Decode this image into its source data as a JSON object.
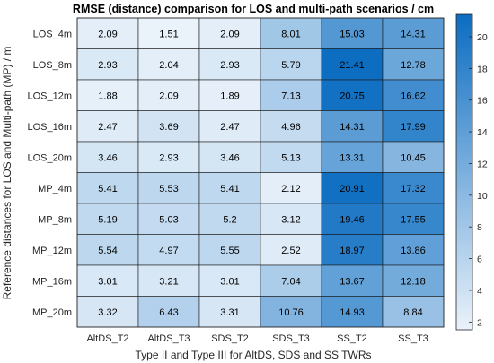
{
  "chart_data": {
    "type": "heatmap",
    "title": "RMSE (distance) comparison for LOS and multi-path scenarios / cm",
    "xlabel": "Type II and Type III for AltDS, SDS and SS TWRs",
    "ylabel": "Reference distances for LOS and Multi-path (MP) / m",
    "x_categories": [
      "AltDS_T2",
      "AltDS_T3",
      "SDS_T2",
      "SDS_T3",
      "SS_T2",
      "SS_T3"
    ],
    "y_categories": [
      "LOS_4m",
      "LOS_8m",
      "LOS_12m",
      "LOS_16m",
      "LOS_20m",
      "MP_4m",
      "MP_8m",
      "MP_12m",
      "MP_16m",
      "MP_20m"
    ],
    "values": [
      [
        2.09,
        1.51,
        2.09,
        8.01,
        15.03,
        14.31
      ],
      [
        2.93,
        2.04,
        2.93,
        5.79,
        21.41,
        12.78
      ],
      [
        1.88,
        2.09,
        1.89,
        7.13,
        20.75,
        16.62
      ],
      [
        2.47,
        3.69,
        2.47,
        4.96,
        14.31,
        17.99
      ],
      [
        3.46,
        2.93,
        3.46,
        5.13,
        13.31,
        10.45
      ],
      [
        5.41,
        5.53,
        5.41,
        2.12,
        20.91,
        17.32
      ],
      [
        5.19,
        5.03,
        5.2,
        3.12,
        19.46,
        17.55
      ],
      [
        5.54,
        4.97,
        5.55,
        2.52,
        18.97,
        13.86
      ],
      [
        3.01,
        3.21,
        3.01,
        7.04,
        13.67,
        12.18
      ],
      [
        3.32,
        6.43,
        3.31,
        10.76,
        14.93,
        8.84
      ]
    ],
    "colorbar": {
      "ticks": [
        2,
        4,
        6,
        8,
        10,
        12,
        14,
        16,
        18,
        20
      ],
      "range": [
        1.51,
        21.41
      ],
      "color_low": "#eaf2fa",
      "color_high": "#0c6dc1"
    }
  }
}
